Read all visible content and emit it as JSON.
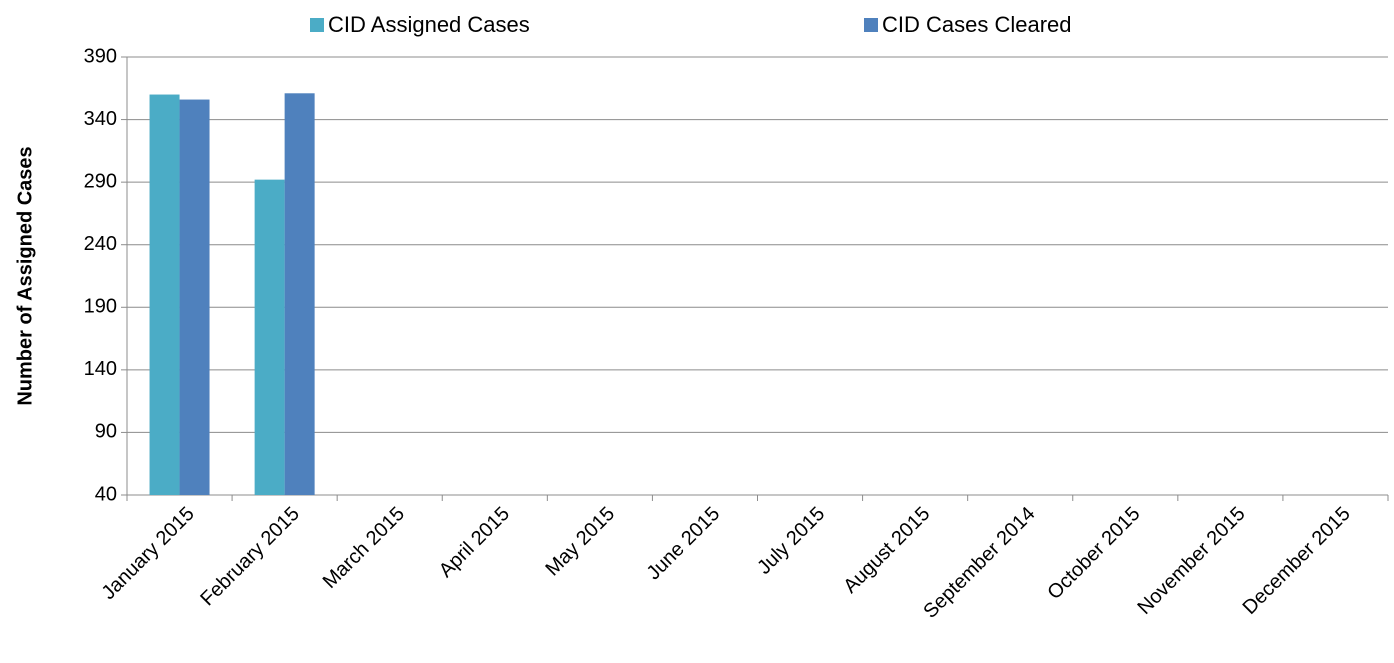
{
  "chart_data": {
    "type": "bar",
    "y_label": "Number of Assigned Cases",
    "categories": [
      "January 2015",
      "February 2015",
      "March 2015",
      "April 2015",
      "May 2015",
      "June 2015",
      "July 2015",
      "August 2015",
      "September 2014",
      "October 2015",
      "November 2015",
      "December 2015"
    ],
    "series": [
      {
        "name": "CID Assigned Cases",
        "color": "#4bacc6",
        "values": [
          360,
          292,
          null,
          null,
          null,
          null,
          null,
          null,
          null,
          null,
          null,
          null
        ]
      },
      {
        "name": "CID Cases Cleared",
        "color": "#4f81bd",
        "values": [
          356,
          361,
          null,
          null,
          null,
          null,
          null,
          null,
          null,
          null,
          null,
          null
        ]
      }
    ],
    "ylim": [
      40,
      390
    ],
    "yticks": [
      40,
      90,
      140,
      190,
      240,
      290,
      340,
      390
    ],
    "grid": true,
    "legend": "top"
  }
}
